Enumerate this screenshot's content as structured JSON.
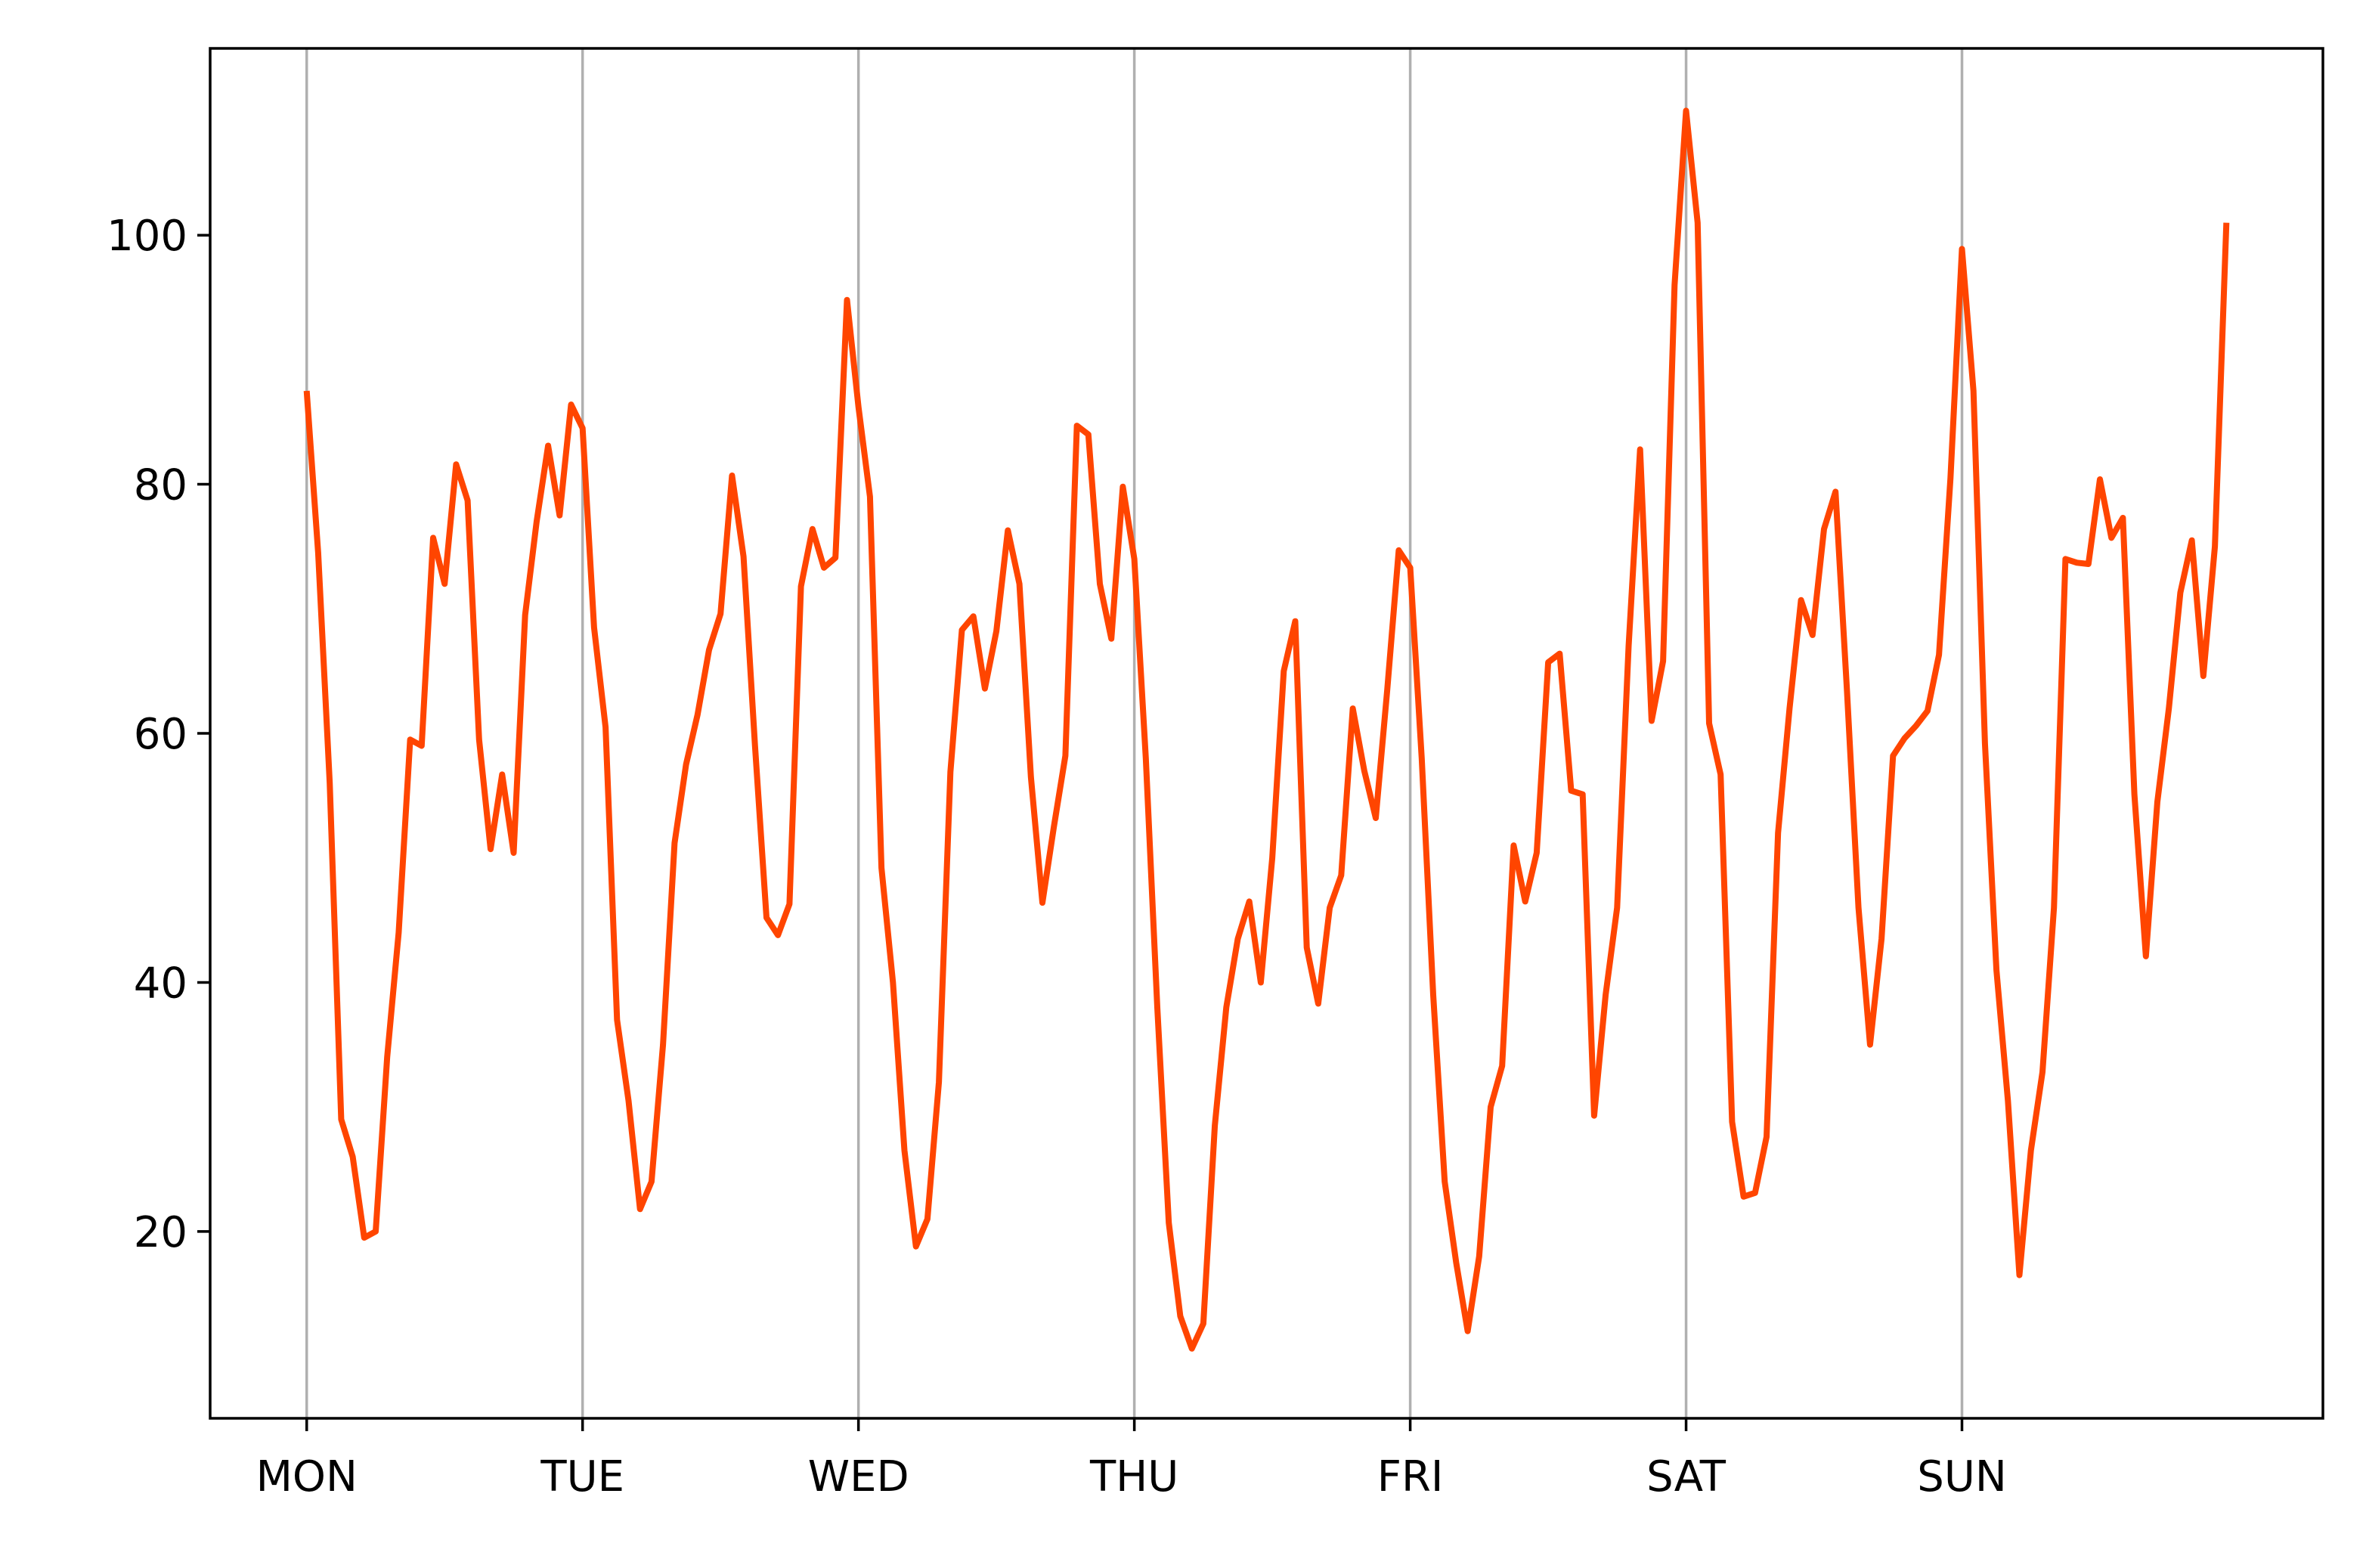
{
  "chart_data": {
    "type": "line",
    "title": "",
    "xlabel": "",
    "ylabel": "",
    "x_unit": "hour",
    "x_ticks": [
      {
        "x": 0,
        "label": "MON"
      },
      {
        "x": 24,
        "label": "TUE"
      },
      {
        "x": 48,
        "label": "WED"
      },
      {
        "x": 72,
        "label": "THU"
      },
      {
        "x": 96,
        "label": "FRI"
      },
      {
        "x": 120,
        "label": "SAT"
      },
      {
        "x": 144,
        "label": "SUN"
      }
    ],
    "y_ticks": [
      20,
      40,
      60,
      80,
      100
    ],
    "xlim": [
      -8.4,
      175.4
    ],
    "ylim": [
      5,
      115
    ],
    "grid": "vertical",
    "series": [
      {
        "color": "#ff4500",
        "x": [
          0,
          1,
          2,
          3,
          4,
          5,
          6,
          7,
          8,
          9,
          10,
          11,
          12,
          13,
          14,
          15,
          16,
          17,
          18,
          19,
          20,
          21,
          22,
          23,
          24,
          25,
          26,
          27,
          28,
          29,
          30,
          31,
          32,
          33,
          34,
          35,
          36,
          37,
          38,
          39,
          40,
          41,
          42,
          43,
          44,
          45,
          46,
          47,
          48,
          49,
          50,
          51,
          52,
          53,
          54,
          55,
          56,
          57,
          58,
          59,
          60,
          61,
          62,
          63,
          64,
          65,
          66,
          67,
          68,
          69,
          70,
          71,
          72,
          73,
          74,
          75,
          76,
          77,
          78,
          79,
          80,
          81,
          82,
          83,
          84,
          85,
          86,
          87,
          88,
          89,
          90,
          91,
          92,
          93,
          94,
          95,
          96,
          97,
          98,
          99,
          100,
          101,
          102,
          103,
          104,
          105,
          106,
          107,
          108,
          109,
          110,
          111,
          112,
          113,
          114,
          115,
          116,
          117,
          118,
          119,
          120,
          121,
          122,
          123,
          124,
          125,
          126,
          127,
          128,
          129,
          130,
          131,
          132,
          133,
          134,
          135,
          136,
          137,
          138,
          139,
          140,
          141,
          142,
          143,
          144,
          145,
          146,
          147,
          148,
          149,
          150,
          151,
          152,
          153,
          154,
          155,
          156,
          157,
          158,
          159,
          160,
          161,
          162,
          163,
          164,
          165,
          166,
          167
        ],
        "y": [
          87.5,
          74.5,
          56,
          29,
          26,
          19.5,
          20,
          34,
          44,
          59.5,
          59,
          75.7,
          72,
          81.6,
          78.7,
          59.5,
          50.7,
          56.7,
          50.4,
          69.5,
          77,
          83.1,
          77.5,
          86.4,
          84.5,
          68.5,
          60.5,
          37,
          30.5,
          21.8,
          24,
          35,
          51.2,
          57.5,
          61.5,
          66.7,
          69.6,
          80.7,
          74.2,
          59,
          45.2,
          43.8,
          46.3,
          71.8,
          76.4,
          73.3,
          74.1,
          94.8,
          86.2,
          79,
          49.2,
          40,
          26.5,
          18.8,
          21,
          32,
          56.9,
          68.3,
          69.4,
          63.6,
          68.2,
          76.3,
          72,
          56.5,
          46.4,
          52.5,
          58.2,
          84.7,
          84,
          72,
          67.6,
          79.8,
          74,
          58,
          38,
          20.7,
          13.2,
          10.6,
          12.6,
          28.5,
          38,
          43.5,
          46.5,
          40,
          50,
          65,
          69,
          42.8,
          38.3,
          46,
          48.6,
          62,
          57,
          53.2,
          63.5,
          74.7,
          73.3,
          58,
          39,
          24,
          17.5,
          12,
          18,
          30,
          33.3,
          51,
          46.5,
          50.4,
          65.7,
          66.4,
          55.4,
          55.1,
          29.3,
          39,
          46,
          67,
          82.8,
          61,
          65.8,
          96,
          110,
          101,
          60.8,
          56.7,
          28.8,
          22.8,
          23.1,
          27.6,
          52,
          62,
          70.7,
          67.9,
          76.4,
          79.4,
          63.4,
          46,
          35,
          43.5,
          58.2,
          59.6,
          60.6,
          61.8,
          66.3,
          80.5,
          98.9,
          87.5,
          59.2,
          41,
          30.5,
          16.5,
          26.5,
          32.8,
          46,
          74,
          73.7,
          73.6,
          80.4,
          75.7,
          77.3,
          55.1,
          42.1,
          54.5,
          62,
          71.3,
          75.5,
          64.6,
          75,
          101
        ]
      }
    ]
  }
}
